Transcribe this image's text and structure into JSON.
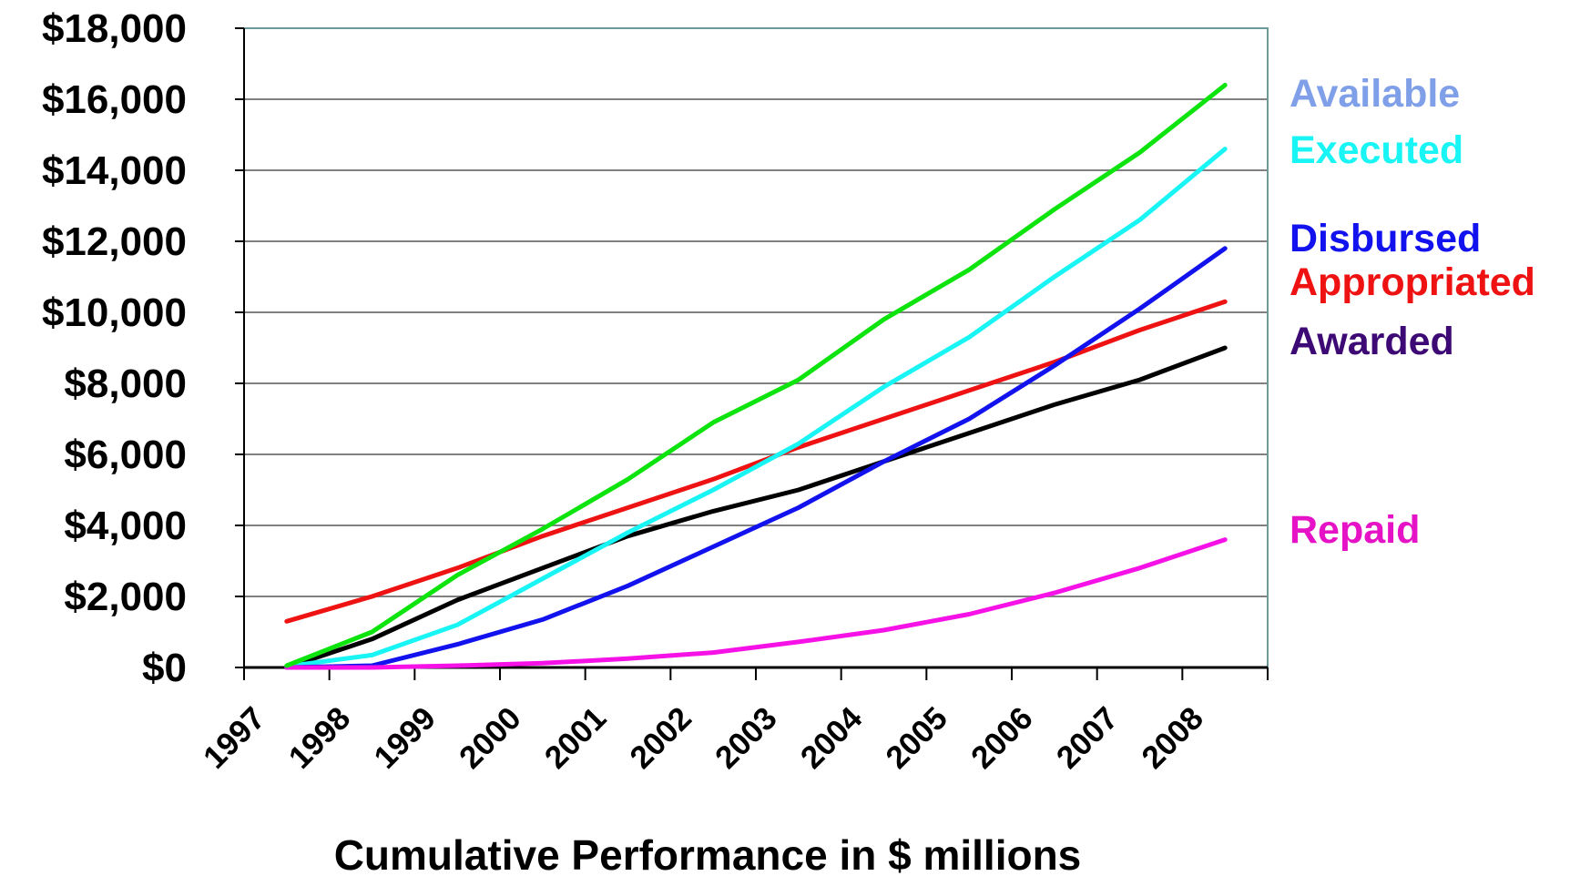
{
  "chart_data": {
    "type": "line",
    "title": "",
    "xlabel": "Cumulative Performance in $ millions",
    "ylabel": "",
    "categories": [
      "1997",
      "1998",
      "1999",
      "2000",
      "2001",
      "2002",
      "2003",
      "2004",
      "2005",
      "2006",
      "2007",
      "2008"
    ],
    "ylim": [
      0,
      18000
    ],
    "yticks": [
      0,
      2000,
      4000,
      6000,
      8000,
      10000,
      12000,
      14000,
      16000,
      18000
    ],
    "ytick_labels": [
      "$0",
      "$2,000",
      "$4,000",
      "$6,000",
      "$8,000",
      "$10,000",
      "$12,000",
      "$14,000",
      "$16,000",
      "$18,000"
    ],
    "grid": true,
    "legend_placement": "right",
    "series": [
      {
        "name": "Available",
        "color": "#7f9fff",
        "values": [
          50,
          1000,
          2600,
          3900,
          5300,
          6900,
          8100,
          9800,
          11200,
          12900,
          14500,
          16400
        ]
      },
      {
        "name": "Executed",
        "color": "#19f4f4",
        "values": [
          30,
          350,
          1200,
          2500,
          3800,
          5000,
          6300,
          7900,
          9300,
          11000,
          12600,
          14600
        ]
      },
      {
        "name": "Disbursed",
        "color": "#1212ee",
        "values": [
          0,
          50,
          650,
          1350,
          2300,
          3400,
          4500,
          5800,
          7000,
          8500,
          10100,
          11800
        ]
      },
      {
        "name": "Appropriated",
        "color": "#ee1212",
        "values": [
          1300,
          2000,
          2800,
          3700,
          4500,
          5300,
          6200,
          7000,
          7800,
          8600,
          9500,
          10300
        ]
      },
      {
        "name": "Awarded",
        "color": "#000000",
        "values": [
          0,
          800,
          1900,
          2800,
          3700,
          4400,
          5000,
          5800,
          6600,
          7400,
          8100,
          9000
        ]
      },
      {
        "name": "Repaid",
        "color": "#f612e6",
        "values": [
          0,
          0,
          50,
          120,
          250,
          420,
          720,
          1050,
          1500,
          2100,
          2800,
          3600
        ]
      }
    ],
    "extra_lines": [
      {
        "color": "#0de30d",
        "values": [
          50,
          1000,
          2600,
          3900,
          5300,
          6900,
          8100,
          9800,
          11200,
          12900,
          14500,
          16400
        ]
      }
    ],
    "label_colors": {
      "Available": "#7f9fe8",
      "Executed": "#19f4f4",
      "Disbursed": "#1212ee",
      "Appropriated": "#ee1212",
      "Awarded": "#3d0a75",
      "Repaid": "#e612c6"
    }
  }
}
